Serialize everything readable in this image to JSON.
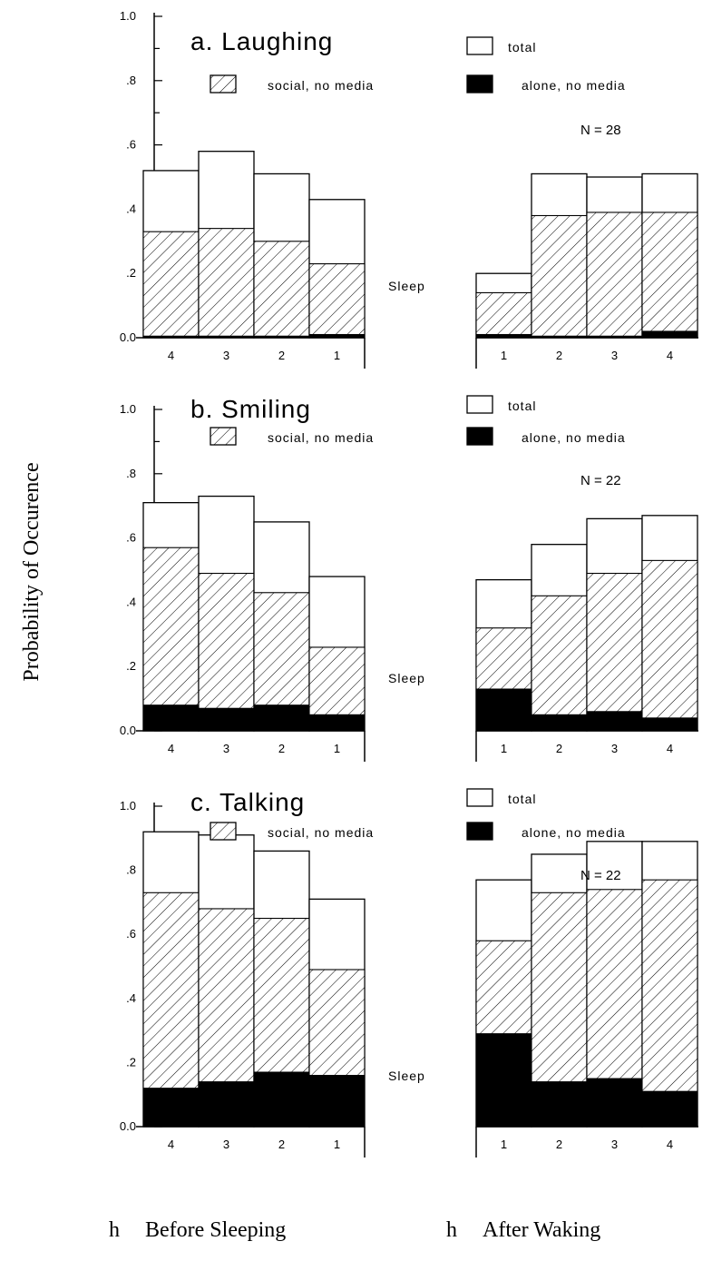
{
  "ylabel": "Probability of Occurence",
  "xlabel_left": "Before Sleeping",
  "xlabel_right": "After Waking",
  "xlabel_left_marker": "h",
  "xlabel_right_marker": "h",
  "sleep_label": "Sleep",
  "colors": {
    "total": "#ffffff",
    "social": "#ffffff",
    "alone": "#000000",
    "ink": "#000000"
  },
  "chart_data": [
    {
      "type": "bar",
      "title": "a. Laughing",
      "n_label": "N = 28",
      "legend": {
        "total": "total",
        "social": "social, no media",
        "alone": "alone, no media"
      },
      "ylim": [
        0,
        1.0
      ],
      "yticks": [
        "0.0",
        ".2",
        ".4",
        ".6",
        ".8",
        "1.0"
      ],
      "before": {
        "categories": [
          "4",
          "3",
          "2",
          "1"
        ],
        "series": [
          {
            "name": "total",
            "values": [
              0.52,
              0.58,
              0.51,
              0.43
            ]
          },
          {
            "name": "social, no media",
            "values": [
              0.33,
              0.34,
              0.3,
              0.23
            ]
          },
          {
            "name": "alone, no media",
            "values": [
              0.005,
              0.005,
              0.005,
              0.01
            ]
          }
        ]
      },
      "after": {
        "categories": [
          "1",
          "2",
          "3",
          "4"
        ],
        "series": [
          {
            "name": "total",
            "values": [
              0.2,
              0.51,
              0.5,
              0.51
            ]
          },
          {
            "name": "social, no media",
            "values": [
              0.14,
              0.38,
              0.39,
              0.39
            ]
          },
          {
            "name": "alone, no media",
            "values": [
              0.01,
              0.005,
              0.005,
              0.02
            ]
          }
        ]
      }
    },
    {
      "type": "bar",
      "title": "b. Smiling",
      "n_label": "N = 22",
      "legend": {
        "total": "total",
        "social": "social, no media",
        "alone": "alone, no media"
      },
      "ylim": [
        0,
        1.0
      ],
      "yticks": [
        "0.0",
        ".2",
        ".4",
        ".6",
        ".8",
        "1.0"
      ],
      "before": {
        "categories": [
          "4",
          "3",
          "2",
          "1"
        ],
        "series": [
          {
            "name": "total",
            "values": [
              0.71,
              0.73,
              0.65,
              0.48
            ]
          },
          {
            "name": "social, no media",
            "values": [
              0.57,
              0.49,
              0.43,
              0.26
            ]
          },
          {
            "name": "alone, no media",
            "values": [
              0.08,
              0.07,
              0.08,
              0.05
            ]
          }
        ]
      },
      "after": {
        "categories": [
          "1",
          "2",
          "3",
          "4"
        ],
        "series": [
          {
            "name": "total",
            "values": [
              0.47,
              0.58,
              0.66,
              0.67
            ]
          },
          {
            "name": "social, no media",
            "values": [
              0.32,
              0.42,
              0.49,
              0.53
            ]
          },
          {
            "name": "alone, no media",
            "values": [
              0.13,
              0.05,
              0.06,
              0.04
            ]
          }
        ]
      }
    },
    {
      "type": "bar",
      "title": "c. Talking",
      "n_label": "N = 22",
      "legend": {
        "total": "total",
        "social": "social, no media",
        "alone": "alone, no media"
      },
      "ylim": [
        0,
        1.0
      ],
      "yticks": [
        "0.0",
        ".2",
        ".4",
        ".6",
        ".8",
        "1.0"
      ],
      "before": {
        "categories": [
          "4",
          "3",
          "2",
          "1"
        ],
        "series": [
          {
            "name": "total",
            "values": [
              0.92,
              0.91,
              0.86,
              0.71
            ]
          },
          {
            "name": "social, no media",
            "values": [
              0.73,
              0.68,
              0.65,
              0.49
            ]
          },
          {
            "name": "alone, no media",
            "values": [
              0.12,
              0.14,
              0.17,
              0.16
            ]
          }
        ]
      },
      "after": {
        "categories": [
          "1",
          "2",
          "3",
          "4"
        ],
        "series": [
          {
            "name": "total",
            "values": [
              0.77,
              0.85,
              0.89,
              0.89
            ]
          },
          {
            "name": "social, no media",
            "values": [
              0.58,
              0.73,
              0.74,
              0.77
            ]
          },
          {
            "name": "alone, no media",
            "values": [
              0.29,
              0.14,
              0.15,
              0.11
            ]
          }
        ]
      }
    }
  ]
}
